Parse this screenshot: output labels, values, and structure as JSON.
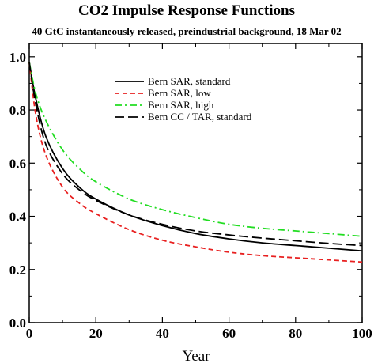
{
  "chart_data": {
    "type": "line",
    "title": "CO2 Impulse Response Functions",
    "subtitle": "40 GtC instantaneously released, preindustrial background, 18 Mar 02",
    "xlabel": "Year",
    "ylabel": "",
    "xlim": [
      0,
      100
    ],
    "ylim": [
      0.0,
      1.05
    ],
    "xticks": [
      "0",
      "20",
      "40",
      "60",
      "80",
      "100"
    ],
    "xtick_values": [
      0,
      20,
      40,
      60,
      80,
      100
    ],
    "yticks": [
      "0.0",
      "0.2",
      "0.4",
      "0.6",
      "0.8",
      "1.0"
    ],
    "ytick_values": [
      0.0,
      0.2,
      0.4,
      0.6,
      0.8,
      1.0
    ],
    "grid": false,
    "legend_position": "top-center",
    "x": [
      0,
      2,
      5,
      10,
      15,
      20,
      30,
      40,
      50,
      60,
      70,
      80,
      90,
      100
    ],
    "series": [
      {
        "name": "Bern SAR, standard",
        "color": "#000000",
        "dash": "solid",
        "values": [
          0.98,
          0.84,
          0.7,
          0.58,
          0.51,
          0.465,
          0.405,
          0.365,
          0.335,
          0.315,
          0.3,
          0.29,
          0.28,
          0.27
        ]
      },
      {
        "name": "Bern SAR, low",
        "color": "#e82020",
        "dash": "dashed",
        "values": [
          0.98,
          0.78,
          0.63,
          0.51,
          0.45,
          0.41,
          0.35,
          0.31,
          0.285,
          0.265,
          0.252,
          0.244,
          0.236,
          0.228
        ]
      },
      {
        "name": "Bern SAR, high",
        "color": "#22dd22",
        "dash": "dashdot",
        "values": [
          0.98,
          0.86,
          0.76,
          0.65,
          0.58,
          0.53,
          0.465,
          0.425,
          0.395,
          0.37,
          0.355,
          0.345,
          0.335,
          0.325
        ]
      },
      {
        "name": "Bern CC / TAR, standard",
        "color": "#000000",
        "dash": "longdash",
        "values": [
          0.98,
          0.82,
          0.67,
          0.56,
          0.5,
          0.46,
          0.405,
          0.37,
          0.345,
          0.33,
          0.318,
          0.308,
          0.298,
          0.29
        ]
      }
    ]
  }
}
